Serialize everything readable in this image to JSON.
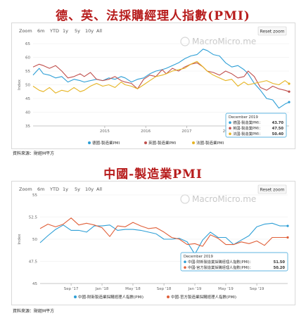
{
  "chart1": {
    "title": "德、英、法採購經理人指數(PMI)",
    "zoom_label": "Zoom",
    "zoom_buttons": [
      "6m",
      "YTD",
      "1y",
      "5y",
      "10y",
      "All"
    ],
    "reset": "Reset zoom",
    "watermark": "MacroMicro.me",
    "ylabel": "Index",
    "source": "資料來源：財經M平方",
    "tooltip": {
      "date": "December 2019",
      "rows": [
        {
          "label": "德國-製造業PMI：",
          "value": "43.70",
          "color": "#2e9fd6"
        },
        {
          "label": "英國-製造業PMI：",
          "value": "47.50",
          "color": "#c0504d"
        },
        {
          "label": "法國-製造業PMI：",
          "value": "50.40",
          "color": "#e6b422"
        }
      ]
    }
  },
  "chart2": {
    "title": "中國-製造業PMI",
    "zoom_label": "Zoom",
    "zoom_buttons": [
      "6m",
      "YTD",
      "1y",
      "5y",
      "10y",
      "All"
    ],
    "reset": "Reset zoom",
    "watermark": "MacroMicro.me",
    "ylabel": "Index",
    "source": "資料來源：財經M平方",
    "tooltip": {
      "date": "December 2019",
      "rows": [
        {
          "label": "中國-財新製造業採購經理人指數(PMI)：",
          "value": "51.50",
          "color": "#2e9fd6"
        },
        {
          "label": "中國-官方製造業採購經理人指數(PMI)：",
          "value": "50.20",
          "color": "#e0603a"
        }
      ]
    }
  },
  "chart_data": [
    {
      "type": "line",
      "title": "德、英、法採購經理人指數(PMI)",
      "ylabel": "Index",
      "ylim": [
        35,
        65
      ],
      "yticks": [
        35,
        40,
        45,
        50,
        55,
        60,
        65
      ],
      "x_tick_labels": [
        "2015",
        "2016",
        "2017",
        "2018"
      ],
      "x_start": 2013.75,
      "x_end": 2020.0,
      "x_tick_values": [
        2015.5,
        2016.5,
        2017.5,
        2018.5
      ],
      "legend_position": "bottom",
      "series": [
        {
          "name": "德國-製造業PMI",
          "color": "#2e9fd6",
          "x": [
            2013.75,
            2013.9,
            2014.0,
            2014.15,
            2014.3,
            2014.45,
            2014.6,
            2014.75,
            2014.9,
            2015.0,
            2015.15,
            2015.3,
            2015.45,
            2015.6,
            2015.75,
            2015.9,
            2016.0,
            2016.15,
            2016.3,
            2016.45,
            2016.6,
            2016.75,
            2016.9,
            2017.0,
            2017.15,
            2017.3,
            2017.45,
            2017.6,
            2017.75,
            2017.9,
            2018.0,
            2018.15,
            2018.3,
            2018.45,
            2018.6,
            2018.75,
            2018.9,
            2019.0,
            2019.15,
            2019.3,
            2019.45,
            2019.6,
            2019.75,
            2019.9,
            2020.0
          ],
          "y": [
            53.5,
            56.0,
            54.0,
            53.5,
            52.5,
            53.0,
            51.0,
            52.0,
            51.5,
            51.0,
            51.5,
            52.0,
            51.5,
            52.5,
            52.0,
            53.0,
            52.5,
            51.0,
            52.0,
            52.5,
            54.0,
            55.0,
            55.5,
            56.0,
            57.0,
            58.0,
            59.5,
            60.5,
            61.0,
            63.0,
            62.5,
            61.0,
            60.5,
            58.0,
            56.5,
            57.0,
            55.5,
            54.0,
            50.5,
            48.0,
            45.0,
            44.5,
            41.5,
            43.0,
            43.7
          ]
        },
        {
          "name": "英國-製造業PMI",
          "color": "#c0504d",
          "x": [
            2013.75,
            2013.9,
            2014.0,
            2014.15,
            2014.3,
            2014.45,
            2014.6,
            2014.75,
            2014.9,
            2015.0,
            2015.15,
            2015.3,
            2015.45,
            2015.6,
            2015.75,
            2015.9,
            2016.0,
            2016.15,
            2016.3,
            2016.45,
            2016.6,
            2016.75,
            2016.9,
            2017.0,
            2017.15,
            2017.3,
            2017.45,
            2017.6,
            2017.75,
            2017.9,
            2018.0,
            2018.15,
            2018.3,
            2018.45,
            2018.6,
            2018.75,
            2018.9,
            2019.0,
            2019.15,
            2019.3,
            2019.45,
            2019.6,
            2019.75,
            2019.9,
            2020.0
          ],
          "y": [
            56.5,
            57.5,
            57.0,
            56.0,
            57.0,
            55.0,
            52.5,
            53.0,
            54.0,
            53.0,
            54.5,
            52.0,
            51.5,
            52.0,
            53.0,
            51.5,
            51.0,
            50.5,
            48.5,
            52.0,
            53.5,
            53.0,
            55.5,
            54.0,
            56.0,
            55.0,
            56.5,
            57.5,
            58.0,
            56.5,
            55.0,
            54.5,
            53.5,
            55.0,
            54.0,
            52.5,
            53.0,
            55.0,
            53.0,
            49.0,
            48.0,
            49.5,
            48.5,
            48.0,
            47.5
          ]
        },
        {
          "name": "法國-製造業PMI",
          "color": "#e6b422",
          "x": [
            2013.75,
            2013.9,
            2014.0,
            2014.15,
            2014.3,
            2014.45,
            2014.6,
            2014.75,
            2014.9,
            2015.0,
            2015.15,
            2015.3,
            2015.45,
            2015.6,
            2015.75,
            2015.9,
            2016.0,
            2016.15,
            2016.3,
            2016.45,
            2016.6,
            2016.75,
            2016.9,
            2017.0,
            2017.15,
            2017.3,
            2017.45,
            2017.6,
            2017.75,
            2017.9,
            2018.0,
            2018.15,
            2018.3,
            2018.45,
            2018.6,
            2018.75,
            2018.9,
            2019.0,
            2019.15,
            2019.3,
            2019.45,
            2019.6,
            2019.75,
            2019.9,
            2020.0
          ],
          "y": [
            49.5,
            48.0,
            47.5,
            49.0,
            47.0,
            48.0,
            47.5,
            49.0,
            47.5,
            48.0,
            49.5,
            50.5,
            49.5,
            50.0,
            49.0,
            51.0,
            50.0,
            49.5,
            48.5,
            50.0,
            51.5,
            53.0,
            53.5,
            54.0,
            55.0,
            55.5,
            56.0,
            57.5,
            58.5,
            56.5,
            55.0,
            53.5,
            52.5,
            51.5,
            52.0,
            49.5,
            51.0,
            50.0,
            50.5,
            51.0,
            51.5,
            50.5,
            50.0,
            51.5,
            50.4
          ]
        }
      ]
    },
    {
      "type": "line",
      "title": "中國-製造業PMI",
      "ylabel": "Index",
      "ylim": [
        45,
        55
      ],
      "yticks": [
        45,
        47.5,
        50,
        52.5,
        55
      ],
      "x_tick_labels": [
        "Sep '17",
        "Jan '18",
        "May '18",
        "Sep '18",
        "Jan '19",
        "May '19",
        "Sep '19"
      ],
      "x_start": 2017.333,
      "x_end": 2020.0,
      "x_tick_values": [
        2017.667,
        2018.0,
        2018.333,
        2018.667,
        2019.0,
        2019.333,
        2019.667
      ],
      "legend_position": "bottom",
      "series": [
        {
          "name": "中國-財新製造業採購經理人指數(PMI)",
          "color": "#2e9fd6",
          "x": [
            2017.333,
            2017.417,
            2017.5,
            2017.583,
            2017.667,
            2017.75,
            2017.833,
            2017.917,
            2018.0,
            2018.083,
            2018.167,
            2018.25,
            2018.333,
            2018.417,
            2018.5,
            2018.583,
            2018.667,
            2018.75,
            2018.833,
            2018.917,
            2019.0,
            2019.083,
            2019.167,
            2019.25,
            2019.333,
            2019.417,
            2019.5,
            2019.583,
            2019.667,
            2019.75,
            2019.833,
            2019.917,
            2020.0
          ],
          "y": [
            49.6,
            50.4,
            51.1,
            51.6,
            51.0,
            51.0,
            50.8,
            51.5,
            51.5,
            51.6,
            51.0,
            51.1,
            51.1,
            51.0,
            50.8,
            50.6,
            50.0,
            50.0,
            50.1,
            49.7,
            48.3,
            49.9,
            50.8,
            50.2,
            50.2,
            49.4,
            49.9,
            50.4,
            51.4,
            51.7,
            51.8,
            51.5,
            51.5
          ]
        },
        {
          "name": "中國-官方製造業採購經理人指數(PMI)",
          "color": "#e0603a",
          "x": [
            2017.333,
            2017.417,
            2017.5,
            2017.583,
            2017.667,
            2017.75,
            2017.833,
            2017.917,
            2018.0,
            2018.083,
            2018.167,
            2018.25,
            2018.333,
            2018.417,
            2018.5,
            2018.583,
            2018.667,
            2018.75,
            2018.833,
            2018.917,
            2019.0,
            2019.083,
            2019.167,
            2019.25,
            2019.333,
            2019.417,
            2019.5,
            2019.583,
            2019.667,
            2019.75,
            2019.833,
            2019.917,
            2020.0
          ],
          "y": [
            51.2,
            51.7,
            51.4,
            51.7,
            52.4,
            51.6,
            51.8,
            51.6,
            51.3,
            50.3,
            51.5,
            51.4,
            51.9,
            51.5,
            51.2,
            51.3,
            50.8,
            50.2,
            50.0,
            49.4,
            49.5,
            49.2,
            50.5,
            50.1,
            49.4,
            49.4,
            49.7,
            49.5,
            49.8,
            49.3,
            50.2,
            50.2,
            50.2
          ]
        }
      ]
    }
  ]
}
